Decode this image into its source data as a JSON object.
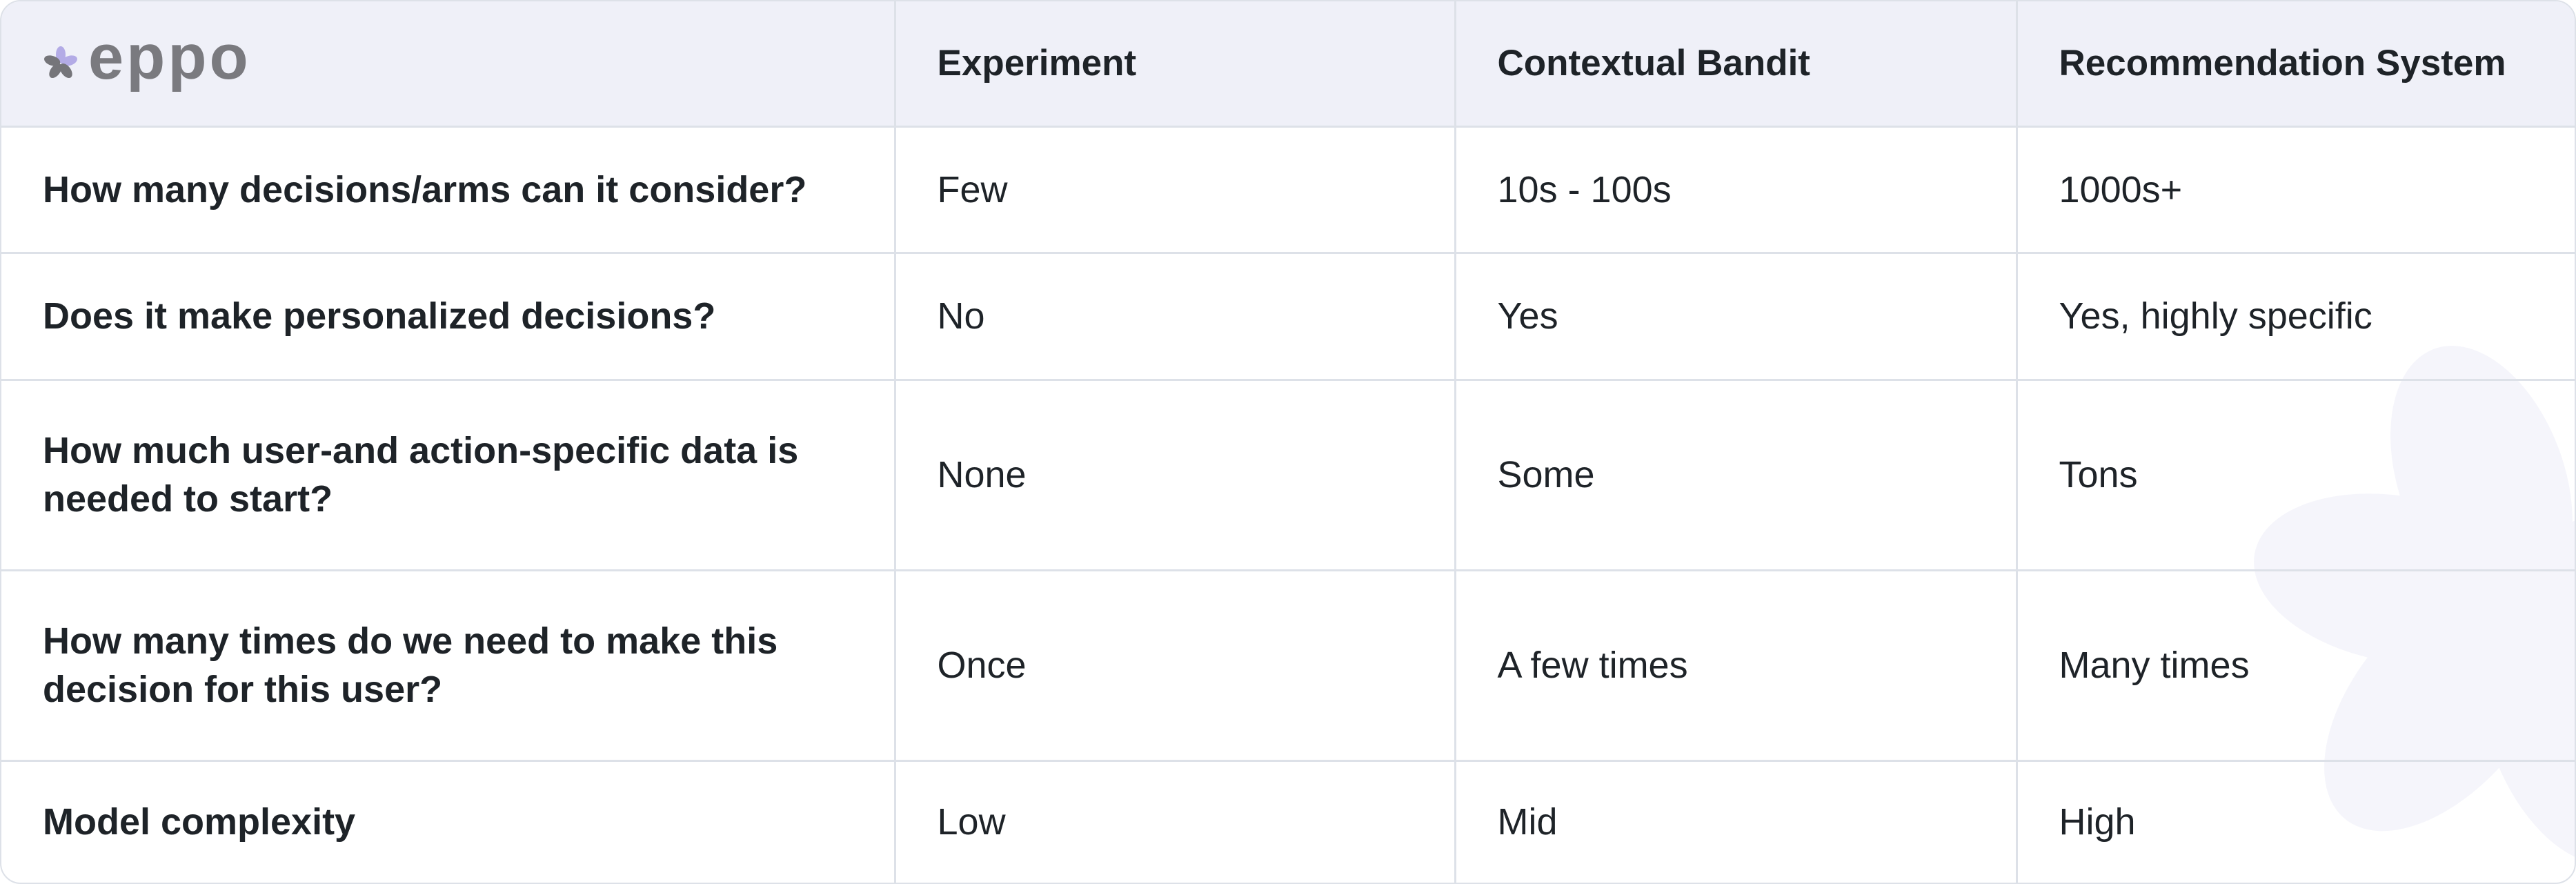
{
  "brand": {
    "logo_text": "eppo",
    "logo_icon": "cherry-blossom-icon",
    "accent_color": "#b3abe6",
    "logo_gray": "#7a7a7f"
  },
  "header_bg": "#eff0f8",
  "columns": [
    "Experiment",
    "Contextual Bandit",
    "Recommendation System"
  ],
  "rows": [
    {
      "question": "How many decisions/arms can it consider?",
      "values": [
        "Few",
        "10s - 100s",
        "1000s+"
      ]
    },
    {
      "question": "Does it make personalized decisions?",
      "values": [
        "No",
        "Yes",
        "Yes, highly specific"
      ]
    },
    {
      "question": "How much user-and action-specific data is needed to start?",
      "values": [
        "None",
        "Some",
        "Tons"
      ]
    },
    {
      "question": "How many times do we need to make this decision for this user?",
      "values": [
        "Once",
        "A few times",
        "Many times"
      ]
    },
    {
      "question": "Model complexity",
      "values": [
        "Low",
        "Mid",
        "High"
      ]
    }
  ]
}
